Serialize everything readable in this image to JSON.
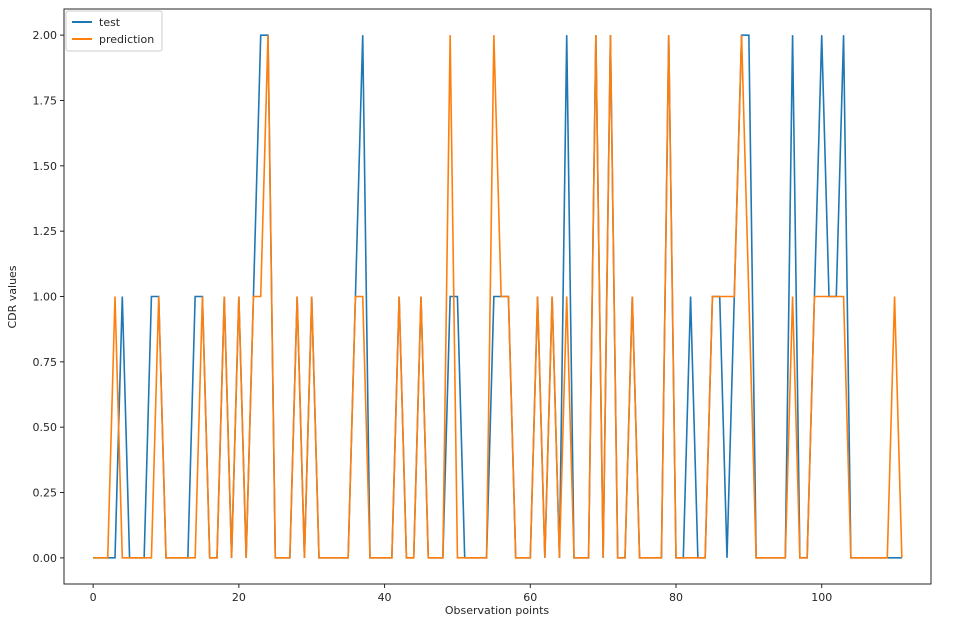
{
  "chart_data": {
    "type": "line",
    "title": "",
    "xlabel": "Observation points",
    "ylabel": "CDR values",
    "xlim": [
      -4,
      115
    ],
    "ylim": [
      -0.1,
      2.1
    ],
    "xticks": [
      0,
      20,
      40,
      60,
      80,
      100
    ],
    "xtick_labels": [
      "0",
      "20",
      "40",
      "60",
      "80",
      "100"
    ],
    "yticks": [
      0,
      0.25,
      0.5,
      0.75,
      1.0,
      1.25,
      1.5,
      1.75,
      2.0
    ],
    "ytick_labels": [
      "0.00",
      "0.25",
      "0.50",
      "0.75",
      "1.00",
      "1.25",
      "1.50",
      "1.75",
      "2.00"
    ],
    "grid": false,
    "legend_position": "top-left",
    "x": [
      0,
      1,
      2,
      3,
      4,
      5,
      6,
      7,
      8,
      9,
      10,
      11,
      12,
      13,
      14,
      15,
      16,
      17,
      18,
      19,
      20,
      21,
      22,
      23,
      24,
      25,
      26,
      27,
      28,
      29,
      30,
      31,
      32,
      33,
      34,
      35,
      36,
      37,
      38,
      39,
      40,
      41,
      42,
      43,
      44,
      45,
      46,
      47,
      48,
      49,
      50,
      51,
      52,
      53,
      54,
      55,
      56,
      57,
      58,
      59,
      60,
      61,
      62,
      63,
      64,
      65,
      66,
      67,
      68,
      69,
      70,
      71,
      72,
      73,
      74,
      75,
      76,
      77,
      78,
      79,
      80,
      81,
      82,
      83,
      84,
      85,
      86,
      87,
      88,
      89,
      90,
      91,
      92,
      93,
      94,
      95,
      96,
      97,
      98,
      99,
      100,
      101,
      102,
      103,
      104,
      105,
      106,
      107,
      108,
      109,
      110,
      111
    ],
    "series": [
      {
        "name": "test",
        "color": "#1f77b4",
        "values": [
          0,
          0,
          0,
          0,
          1,
          0,
          0,
          0,
          1,
          1,
          0,
          0,
          0,
          0,
          1,
          1,
          0,
          0,
          1,
          0,
          1,
          0,
          1,
          2,
          2,
          0,
          0,
          0,
          1,
          0,
          1,
          0,
          0,
          0,
          0,
          0,
          1,
          2,
          0,
          0,
          0,
          0,
          1,
          0,
          0,
          1,
          0,
          0,
          0,
          1,
          1,
          0,
          0,
          0,
          0,
          1,
          1,
          1,
          0,
          0,
          0,
          1,
          0,
          1,
          0,
          2,
          0,
          0,
          0,
          2,
          0,
          2,
          0,
          0,
          1,
          0,
          0,
          0,
          0,
          2,
          0,
          0,
          1,
          0,
          0,
          1,
          1,
          0,
          1,
          2,
          2,
          0,
          0,
          0,
          0,
          0,
          2,
          0,
          0,
          1,
          2,
          1,
          1,
          2,
          0,
          0,
          0,
          0,
          0,
          0,
          0,
          0
        ]
      },
      {
        "name": "prediction",
        "color": "#ff7f0e",
        "values": [
          0,
          0,
          0,
          1,
          0,
          0,
          0,
          0,
          0,
          1,
          0,
          0,
          0,
          0,
          0,
          1,
          0,
          0,
          1,
          0,
          1,
          0,
          1,
          1,
          2,
          0,
          0,
          0,
          1,
          0,
          1,
          0,
          0,
          0,
          0,
          0,
          1,
          1,
          0,
          0,
          0,
          0,
          1,
          0,
          0,
          1,
          0,
          0,
          0,
          2,
          0,
          0,
          0,
          0,
          0,
          2,
          1,
          1,
          0,
          0,
          0,
          1,
          0,
          1,
          0,
          1,
          0,
          0,
          0,
          2,
          0,
          2,
          0,
          0,
          1,
          0,
          0,
          0,
          0,
          2,
          0,
          0,
          0,
          0,
          0,
          1,
          1,
          1,
          1,
          2,
          1,
          0,
          0,
          0,
          0,
          0,
          1,
          0,
          0,
          1,
          1,
          1,
          1,
          1,
          0,
          0,
          0,
          0,
          0,
          0,
          1,
          0
        ]
      }
    ]
  }
}
